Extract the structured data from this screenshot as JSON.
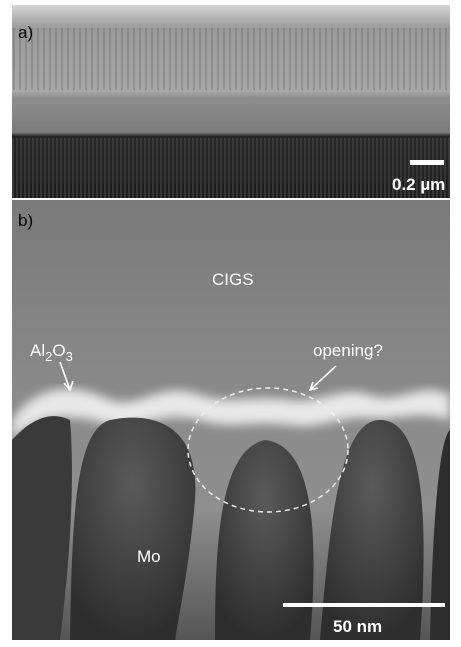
{
  "panel_a": {
    "label": "a)",
    "scale_bar": "0.2 µm"
  },
  "panel_b": {
    "label": "b)",
    "scale_bar": "50 nm",
    "regions": {
      "cigs": "CIGS",
      "mo": "Mo",
      "opening": "opening?",
      "al2o3": {
        "parts": [
          "Al",
          "2",
          "O",
          "3"
        ]
      }
    }
  }
}
